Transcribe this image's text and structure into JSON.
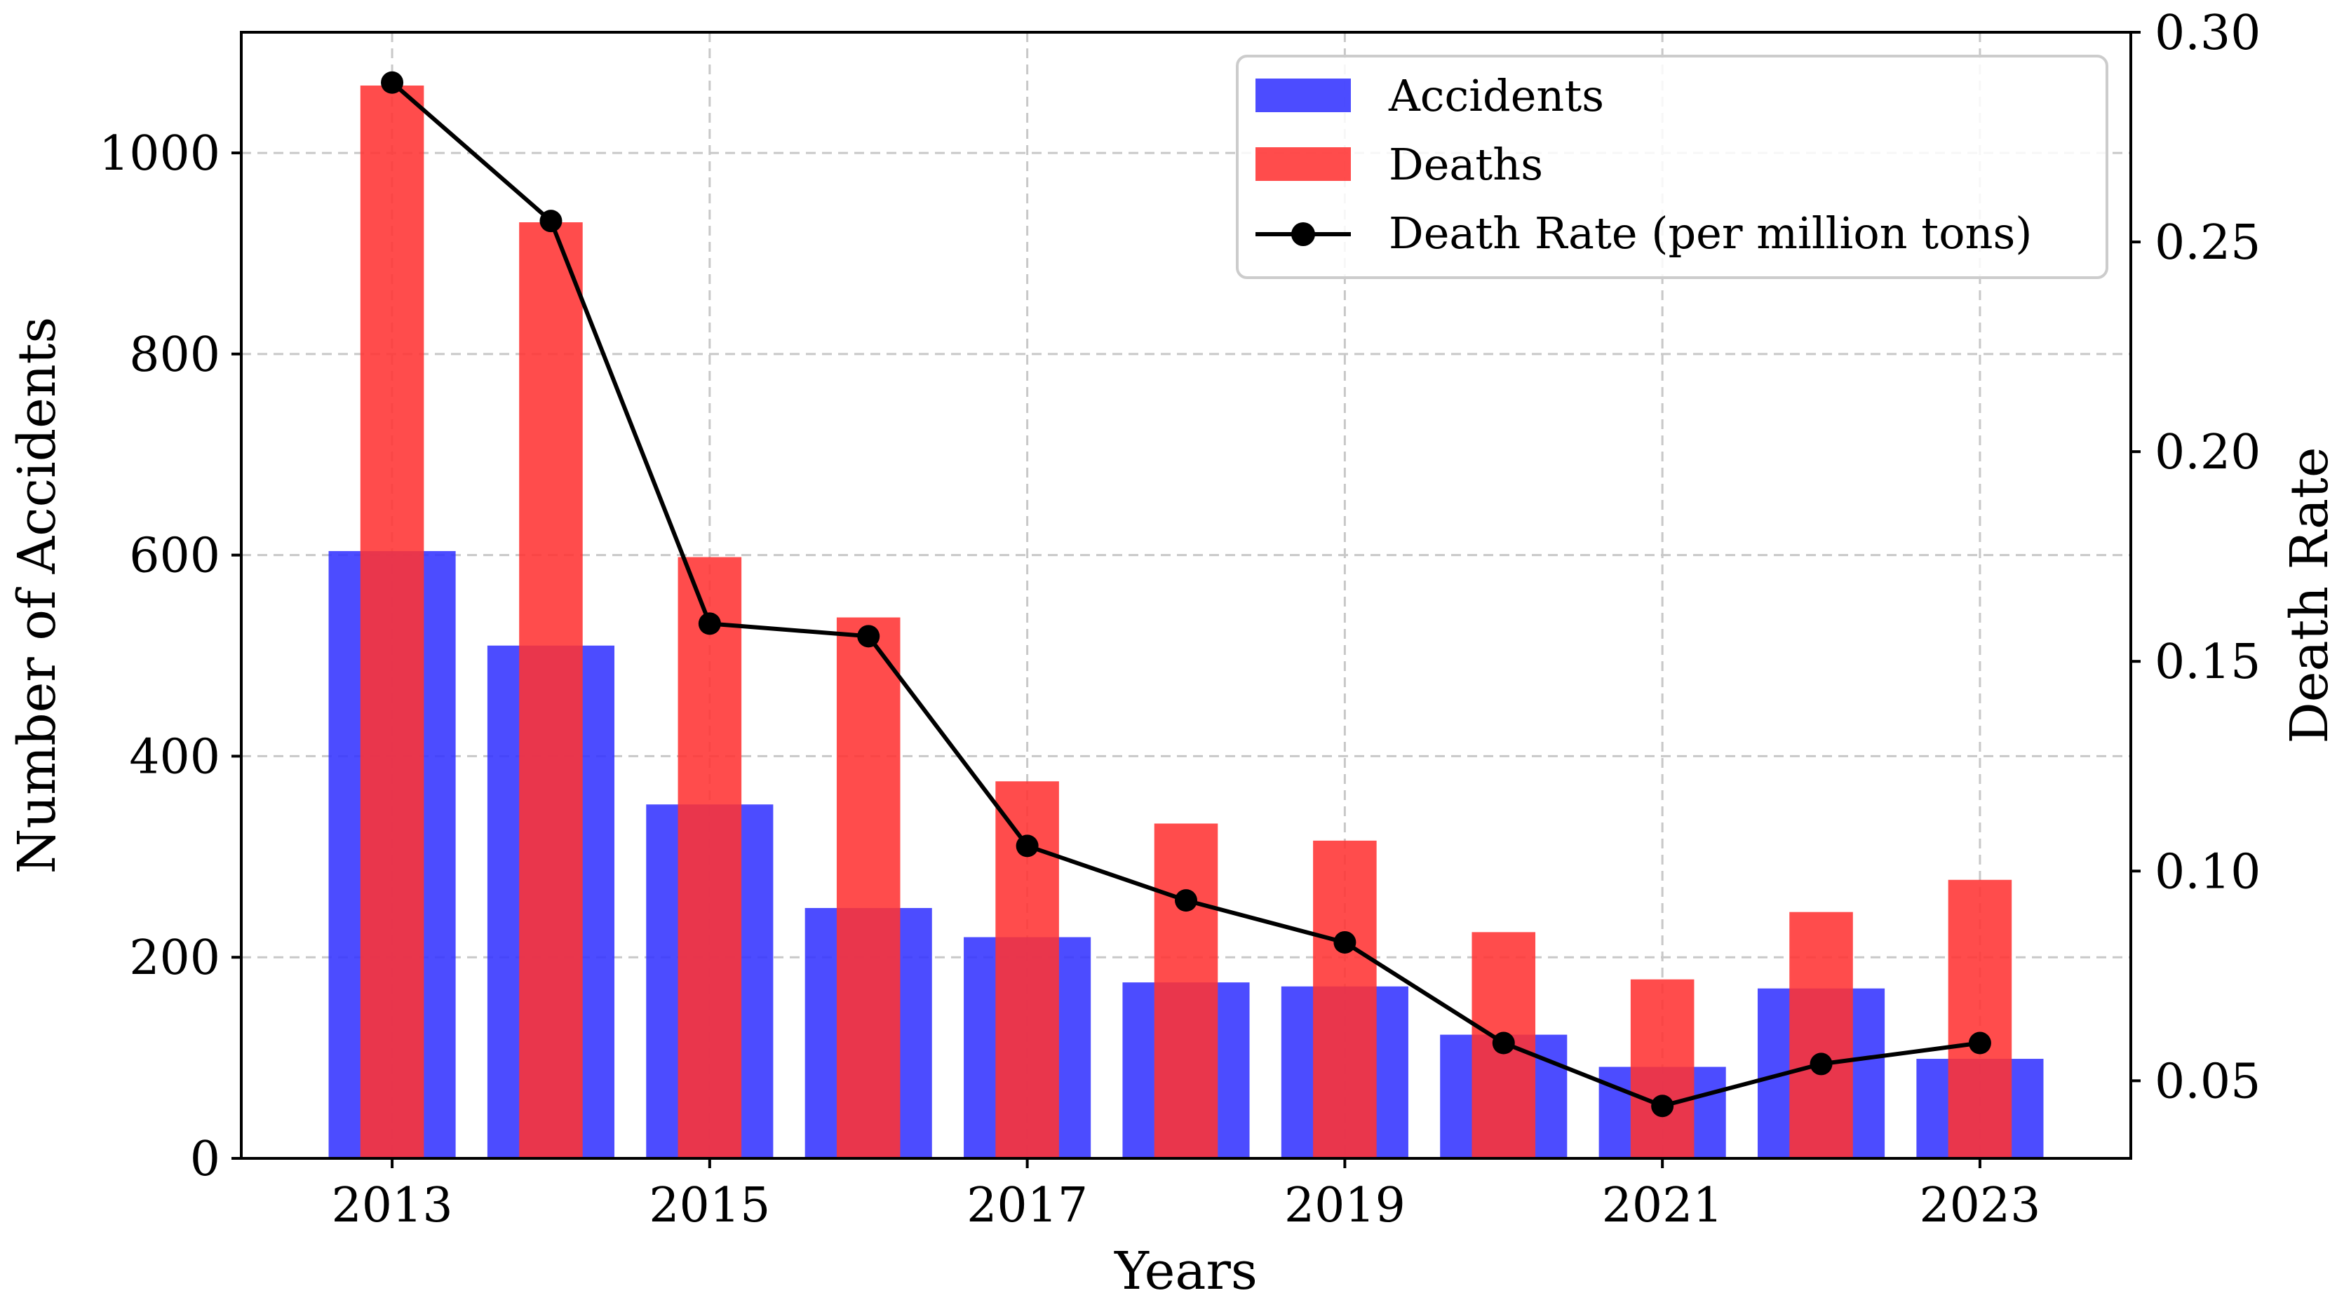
{
  "chart_data": {
    "type": "bar",
    "x": [
      2013,
      2014,
      2015,
      2016,
      2017,
      2018,
      2019,
      2020,
      2021,
      2022,
      2023
    ],
    "series": [
      {
        "name": "Accidents",
        "axis": "left",
        "kind": "bar",
        "color": "#3333ff",
        "values": [
          604,
          510,
          352,
          249,
          220,
          175,
          171,
          123,
          91,
          169,
          99
        ]
      },
      {
        "name": "Deaths",
        "axis": "left",
        "kind": "bar",
        "color": "#ff3333",
        "values": [
          1067,
          931,
          598,
          538,
          375,
          333,
          316,
          225,
          178,
          245,
          277
        ]
      },
      {
        "name": "Death Rate (per million tons)",
        "axis": "right",
        "kind": "line",
        "color": "#000000",
        "values": [
          0.288,
          0.255,
          0.159,
          0.156,
          0.106,
          0.093,
          0.083,
          0.059,
          0.044,
          0.054,
          0.059
        ]
      }
    ],
    "xlabel": "Years",
    "ylabel": "Number of Accidents",
    "y2label": "Death Rate",
    "x_ticks": [
      2013,
      2015,
      2017,
      2019,
      2021,
      2023
    ],
    "x_range": [
      2012.05,
      2023.95
    ],
    "y_ticks": [
      0,
      200,
      400,
      600,
      800,
      1000
    ],
    "y_range": [
      0,
      1120
    ],
    "y2_ticks": [
      "0.05",
      "0.10",
      "0.15",
      "0.20",
      "0.25",
      "0.30"
    ],
    "y2_range": [
      0.0315,
      0.3
    ],
    "legend_position": "top-right",
    "grid": true
  }
}
